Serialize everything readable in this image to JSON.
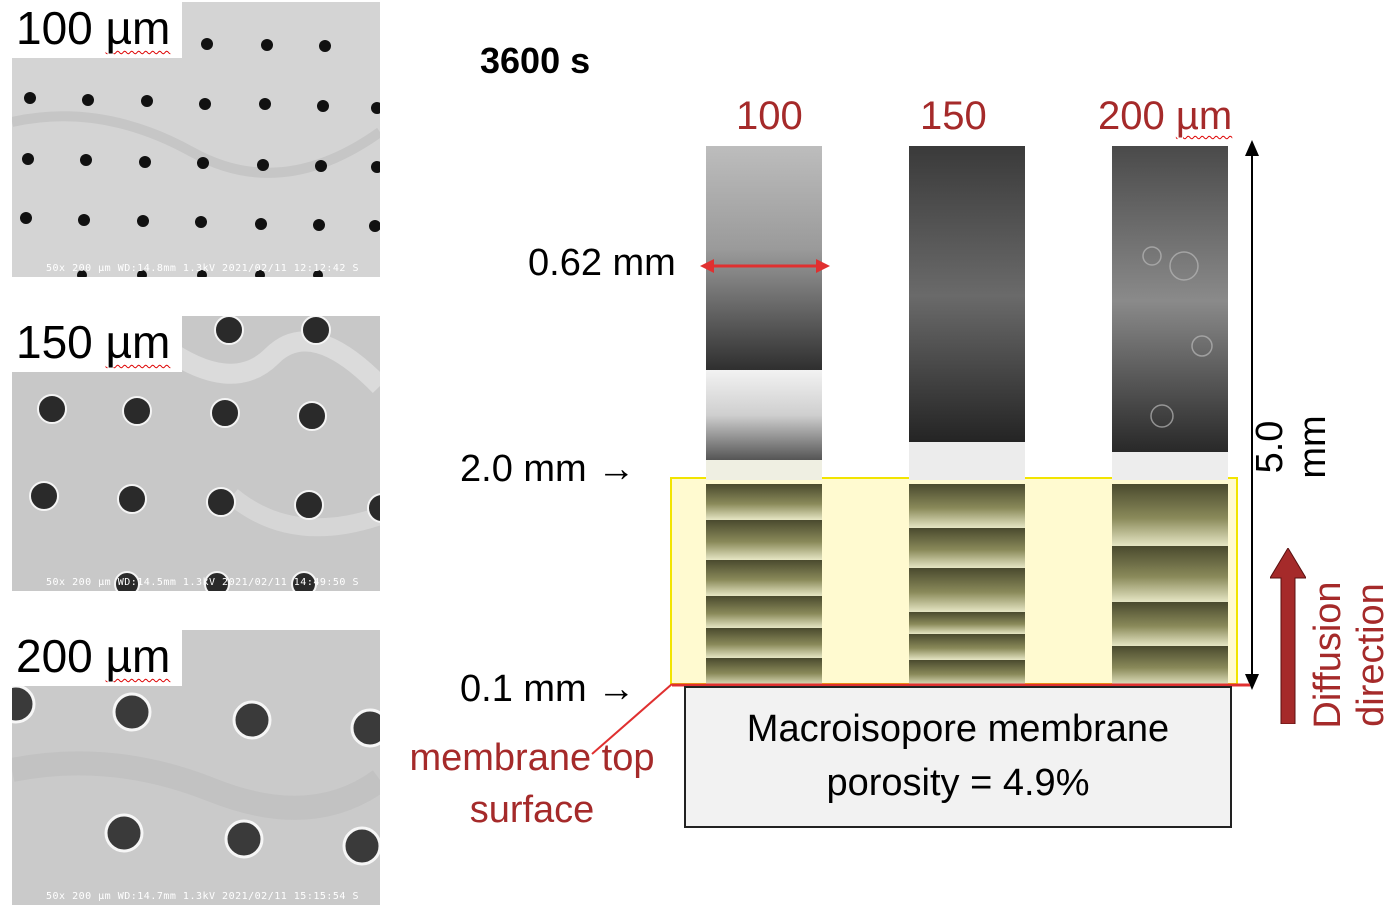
{
  "sem_images": [
    {
      "label_value": "100",
      "label_unit": "µm",
      "info": "50x  200 µm  WD:14.8mm 1.3kV 2021/02/11 12:12:42 S"
    },
    {
      "label_value": "150",
      "label_unit": "µm",
      "info": "50x  200 µm  WD:14.5mm 1.3kV 2021/02/11 14:49:50 S"
    },
    {
      "label_value": "200",
      "label_unit": "µm",
      "info": "50x  200 µm  WD:14.7mm 1.3kV 2021/02/11 15:15:54 S"
    }
  ],
  "time_label": "3600 s",
  "columns": [
    {
      "label": "100",
      "unit": ""
    },
    {
      "label": "150",
      "unit": ""
    },
    {
      "label": "200",
      "unit": "µm"
    }
  ],
  "width_annotation": "0.62 mm",
  "height_2mm": "2.0 mm →",
  "height_01mm": "0.1 mm →",
  "total_height": "5.0 mm",
  "membrane_top_line1": "membrane top",
  "membrane_top_line2": "surface",
  "box_line1": "Macroisopore membrane",
  "box_line2": "porosity = 4.9%",
  "diffusion_label": "Diffusion direction",
  "colors": {
    "accent_red": "#a52a2a",
    "arrow_red": "#e03030",
    "highlight_yellow": "#fffad0",
    "highlight_border": "#f2e400"
  }
}
